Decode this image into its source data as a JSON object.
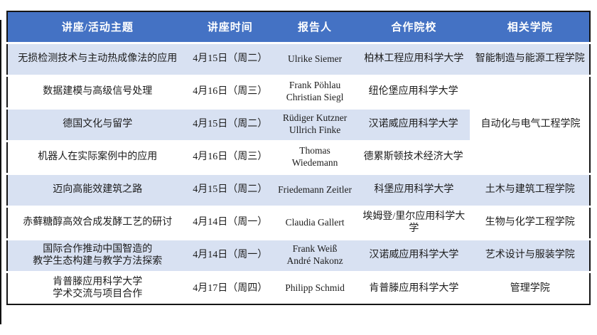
{
  "colors": {
    "header_bg": "#4472C4",
    "band_bg": "#D8E1F2",
    "border": "#151515"
  },
  "table": {
    "headers": {
      "topic": "讲座/活动主题",
      "time": "讲座时间",
      "speaker": "报告人",
      "university": "合作院校",
      "college": "相关学院"
    },
    "merged_college": "自动化与电气工程学院",
    "rows": [
      {
        "topic": "无损检测技术与主动热成像法的应用",
        "time": "4月15日（周二）",
        "speaker": "Ulrike Siemer",
        "university": "柏林工程应用科学大学",
        "college": "智能制造与能源工程学院"
      },
      {
        "topic": "数据建模与高级信号处理",
        "time": "4月16日（周三）",
        "speaker": "Frank Pöhlau\nChristian Siegl",
        "university": "纽伦堡应用科学大学",
        "college": ""
      },
      {
        "topic": "德国文化与留学",
        "time": "4月15日（周二）",
        "speaker": "Rüdiger Kutzner\nUllrich Finke",
        "university": "汉诺威应用科学大学",
        "college": ""
      },
      {
        "topic": "机器人在实际案例中的应用",
        "time": "4月16日（周三）",
        "speaker": "Thomas\nWiedemann",
        "university": "德累斯顿技术经济大学",
        "college": ""
      },
      {
        "topic": "迈向高能效建筑之路",
        "time": "4月15日（周二）",
        "speaker": "Friedemann Zeitler",
        "university": "科堡应用科学大学",
        "college": "土木与建筑工程学院"
      },
      {
        "topic": "赤藓糖醇高效合成发酵工艺的研讨",
        "time": "4月14日（周一）",
        "speaker": "Claudia Gallert",
        "university": "埃姆登/里尔应用科学大学",
        "college": "生物与化学工程学院"
      },
      {
        "topic": "国际合作推动中国智造的\n教学生态构建与教学方法探索",
        "time": "4月14日（周一）",
        "speaker": "Frank Weiß\nAndré Nakonz",
        "university": "汉诺威应用科学大学",
        "college": "艺术设计与服装学院"
      },
      {
        "topic": "肯普滕应用科学大学\n学术交流与项目合作",
        "time": "4月17日（周四）",
        "speaker": "Philipp Schmid",
        "university": "肯普滕应用科学大学",
        "college": "管理学院"
      }
    ]
  }
}
